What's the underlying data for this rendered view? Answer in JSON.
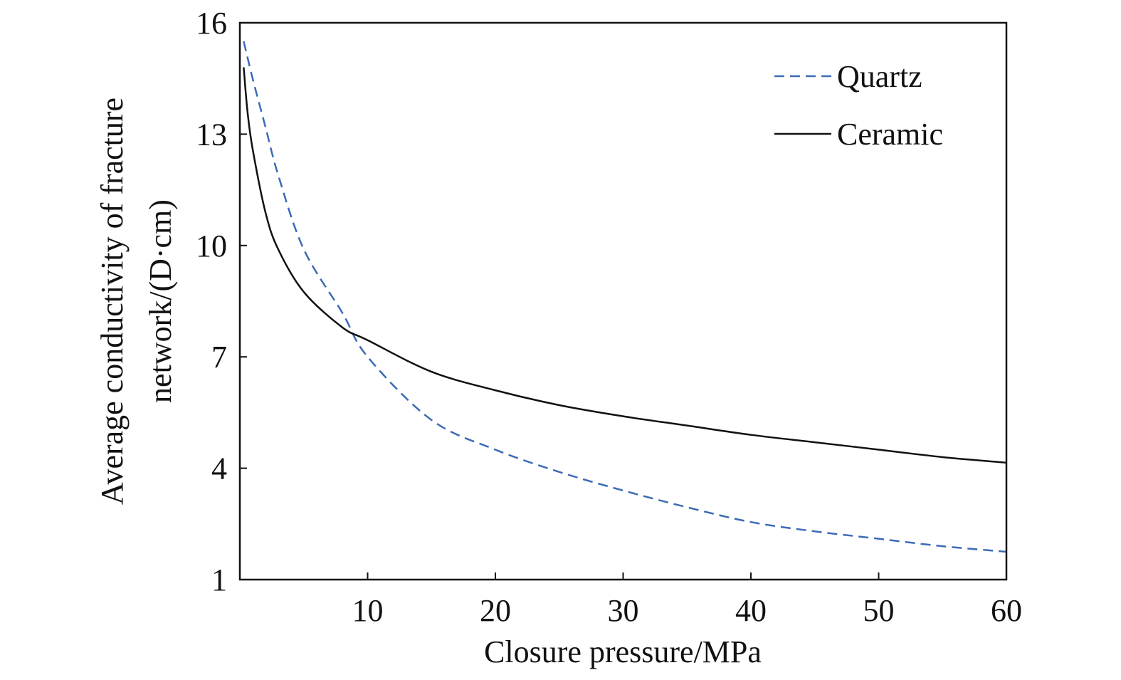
{
  "chart_data": {
    "type": "line",
    "title": "",
    "xlabel": "Closure pressure/MPa",
    "ylabel_line1": "Average conductivity of fracture",
    "ylabel_line2": "network/(D·cm)",
    "xlim": [
      0,
      60
    ],
    "ylim": [
      1,
      16
    ],
    "xticks": [
      10,
      20,
      30,
      40,
      50,
      60
    ],
    "yticks": [
      1,
      4,
      7,
      10,
      13,
      16
    ],
    "grid": false,
    "legend_position": "top-right",
    "series": [
      {
        "name": "Quartz",
        "color": "#3b6bb5",
        "style": "dashed",
        "x": [
          0.3,
          1,
          2,
          3,
          5,
          8,
          10,
          15,
          20,
          25,
          30,
          35,
          40,
          45,
          50,
          55,
          60
        ],
        "y": [
          15.5,
          14.5,
          13.2,
          11.9,
          9.9,
          8.2,
          7.0,
          5.3,
          4.5,
          3.9,
          3.4,
          2.95,
          2.55,
          2.3,
          2.1,
          1.9,
          1.75
        ]
      },
      {
        "name": "Ceramic",
        "color": "#111111",
        "style": "solid",
        "x": [
          0.3,
          0.6,
          1,
          2,
          3,
          5,
          8,
          10,
          15,
          20,
          25,
          30,
          35,
          40,
          45,
          50,
          55,
          60
        ],
        "y": [
          14.8,
          13.6,
          12.6,
          10.9,
          9.9,
          8.75,
          7.8,
          7.45,
          6.6,
          6.1,
          5.7,
          5.4,
          5.15,
          4.9,
          4.7,
          4.5,
          4.3,
          4.15
        ]
      }
    ]
  }
}
